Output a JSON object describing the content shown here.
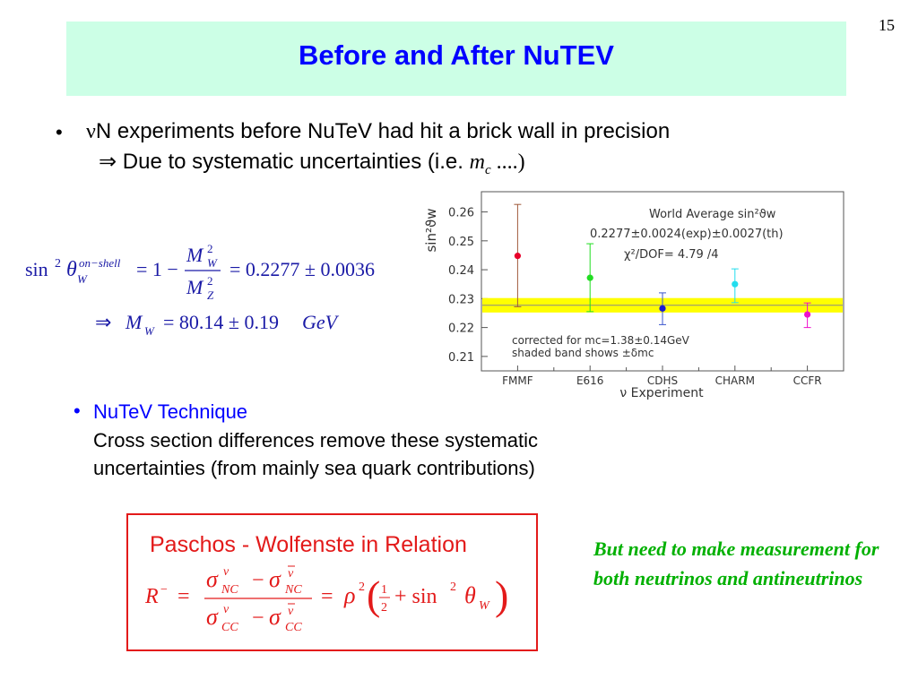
{
  "page_number": "15",
  "title": "Before and After NuTEV",
  "bullet1": {
    "nu": "ν",
    "line1_rest": "N experiments before NuTeV had hit a brick wall in precision",
    "arrow": "⇒",
    "line2_text": " Due to systematic uncertainties (i.e. ",
    "m": "m",
    "c": "c",
    "line2_end": " ....)"
  },
  "eq_sin": {
    "sin": "sin",
    "sq": "2",
    "theta": "θ",
    "sub_w": "W",
    "sup": "on−shell",
    "eq1": "= 1 −",
    "num_m": "M",
    "num_sub": "W",
    "num_sup": "2",
    "den_m": "M",
    "den_sub": "Z",
    "den_sup": "2",
    "rhs": "= 0.2277 ± 0.0036"
  },
  "eq_mw": {
    "arrow": "⇒",
    "m": "M",
    "sub": "W",
    "rhs": "= 80.14 ± 0.19",
    "unit": "GeV"
  },
  "bullet2": {
    "dot": "•",
    "title": "NuTeV Technique",
    "line1": "Cross section differences remove these systematic",
    "line2": "uncertainties (from mainly sea quark contributions)"
  },
  "formula_box": {
    "title": "Paschos - Wolfenste in Relation",
    "R": "R",
    "Rsup": "−",
    "eq": "=",
    "sigma": "σ",
    "nu": "ν",
    "nubar": "ν",
    "NC": "NC",
    "CC": "CC",
    "minus": "−",
    "eq2": "=",
    "rho": "ρ",
    "rho_sup": "2",
    "half_num": "1",
    "half_den": "2",
    "plus_sin": "+ sin",
    "sin_sup": "2",
    "theta": "θ",
    "theta_sub": "W"
  },
  "green_note": "But need to make measurement for both neutrinos and antineutrinos",
  "chart_data": {
    "type": "scatter",
    "ylabel": "sin²ϑw",
    "xlabel": "ν Experiment",
    "categories": [
      "FMMF",
      "E616",
      "CDHS",
      "CHARM",
      "CCFR"
    ],
    "ylim": [
      0.205,
      0.267
    ],
    "yticks": [
      "0.26",
      "0.25",
      "0.24",
      "0.23",
      "0.22",
      "0.21"
    ],
    "ytick_values": [
      0.26,
      0.25,
      0.24,
      0.23,
      0.22,
      0.21
    ],
    "points": [
      {
        "category": "FMMF",
        "value": 0.2448,
        "err_high": 0.2626,
        "err_low": 0.2272,
        "color": "#e8002a",
        "err_color": "#a05a3a"
      },
      {
        "category": "E616",
        "value": 0.2372,
        "err_high": 0.249,
        "err_low": 0.2255,
        "color": "#22dd22",
        "err_color": "#22dd22"
      },
      {
        "category": "CDHS",
        "value": 0.2266,
        "err_high": 0.232,
        "err_low": 0.221,
        "color": "#1a1ad0",
        "err_color": "#3a55cc"
      },
      {
        "category": "CHARM",
        "value": 0.235,
        "err_high": 0.2403,
        "err_low": 0.2286,
        "color": "#22ddee",
        "err_color": "#22ddee"
      },
      {
        "category": "CCFR",
        "value": 0.2245,
        "err_high": 0.2285,
        "err_low": 0.22,
        "color": "#ee11cc",
        "err_color": "#ee11cc"
      }
    ],
    "band": {
      "center": 0.2277,
      "half_width": 0.0025,
      "color": "#ffff00"
    },
    "annotations": {
      "world_avg": "World Average sin²ϑw",
      "world_val": "0.2277±0.0024(exp)±0.0027(th)",
      "chi2": "χ²/DOF= 4.79 /4",
      "corr1": "corrected for mc=1.38±0.14GeV",
      "corr2": "shaded band shows ±δmc"
    },
    "grid": false,
    "legend": "none"
  }
}
